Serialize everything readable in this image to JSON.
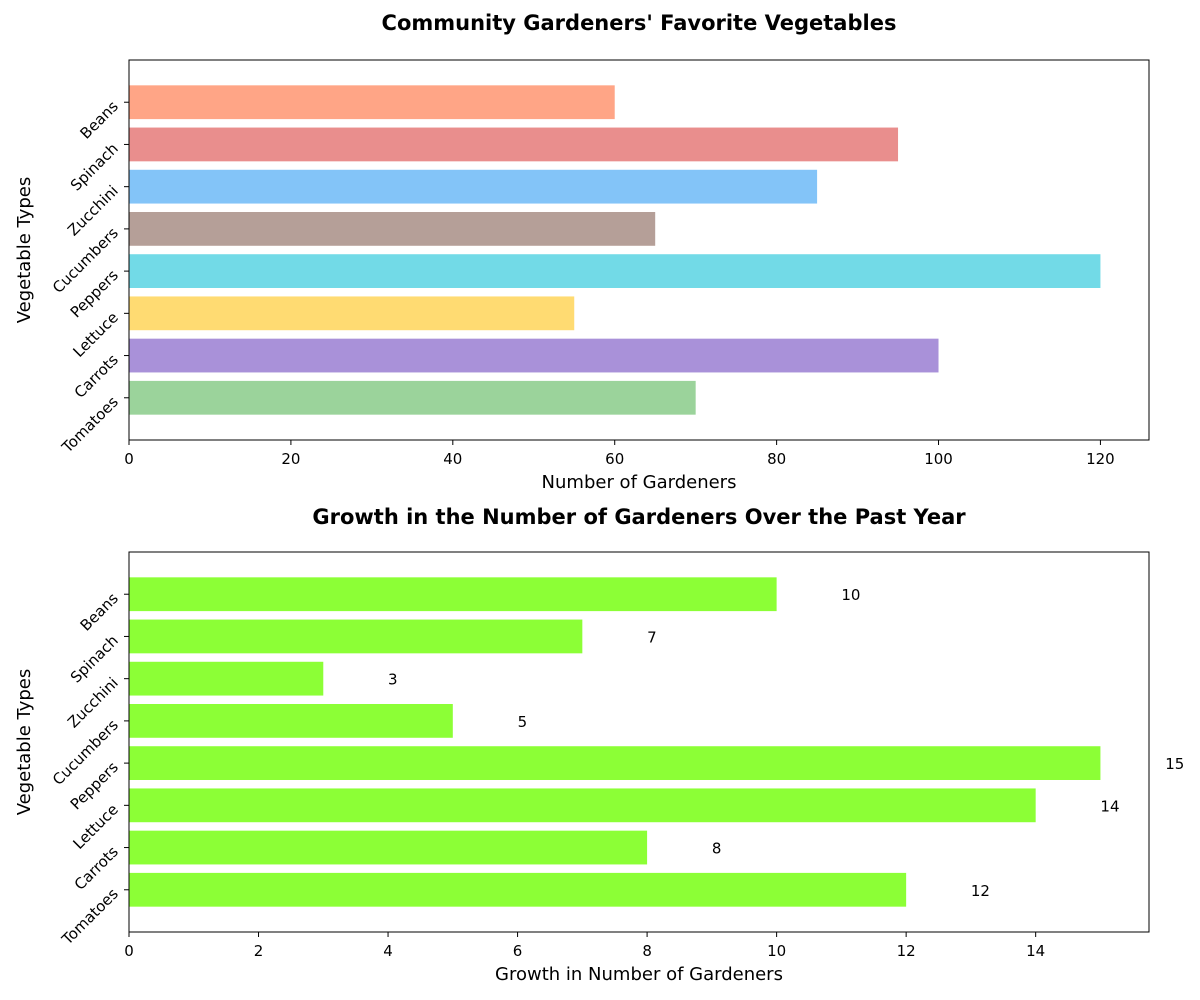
{
  "chart_data": [
    {
      "type": "bar",
      "orientation": "horizontal",
      "title": "Community Gardeners' Favorite Vegetables",
      "xlabel": "Number of Gardeners",
      "ylabel": "Vegetable Types",
      "categories": [
        "Tomatoes",
        "Carrots",
        "Lettuce",
        "Peppers",
        "Cucumbers",
        "Zucchini",
        "Spinach",
        "Beans"
      ],
      "values": [
        70,
        100,
        55,
        120,
        65,
        85,
        95,
        60
      ],
      "colors": [
        "#9bd39b",
        "#a991d9",
        "#ffdb72",
        "#72dae7",
        "#b59f98",
        "#83c4f8",
        "#e98e8d",
        "#ffa586"
      ],
      "xlim": [
        0,
        126
      ],
      "xticks": [
        0,
        20,
        40,
        60,
        80,
        100,
        120
      ],
      "grid": false
    },
    {
      "type": "bar",
      "orientation": "horizontal",
      "title": "Growth in the Number of Gardeners Over the Past Year",
      "xlabel": "Growth in Number of Gardeners",
      "ylabel": "Vegetable Types",
      "categories": [
        "Tomatoes",
        "Carrots",
        "Lettuce",
        "Peppers",
        "Cucumbers",
        "Zucchini",
        "Spinach",
        "Beans"
      ],
      "values": [
        12,
        8,
        14,
        15,
        5,
        3,
        7,
        10
      ],
      "colors": [
        "#8cff36"
      ],
      "xlim": [
        0,
        15.75
      ],
      "xticks": [
        0,
        2,
        4,
        6,
        8,
        10,
        12,
        14
      ],
      "data_labels": [
        "12",
        "8",
        "14",
        "15",
        "5",
        "3",
        "7",
        "10"
      ],
      "grid": false
    }
  ]
}
